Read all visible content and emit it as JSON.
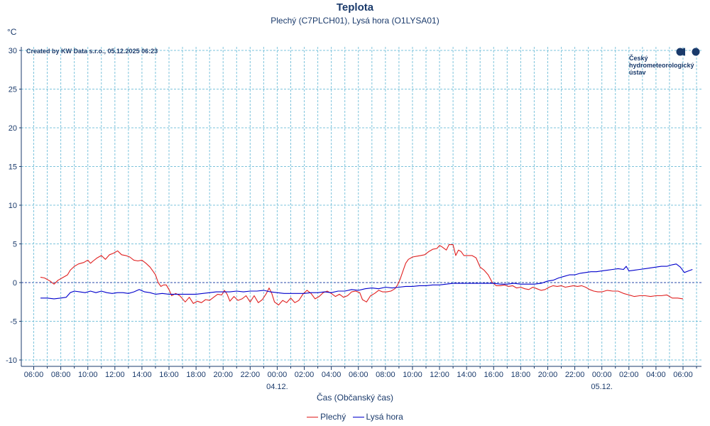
{
  "header": {
    "title": "Teplota",
    "subtitle": "Plechý (C7PLCH01), Lysá hora (O1LYSA01)",
    "unit": "°C",
    "credit": "Created by KW Data s.r.o., 05.12.2025 06:23"
  },
  "logo": {
    "text": "Český\nhydrometeorologický\nústav",
    "color": "#1a3a6b"
  },
  "legend": {
    "items": [
      {
        "label": "Plechý",
        "color": "#e02020"
      },
      {
        "label": "Lysá hora",
        "color": "#0000cc"
      }
    ]
  },
  "chart_data": {
    "type": "line",
    "title": "Teplota",
    "subtitle": "Plechý (C7PLCH01), Lysá hora (O1LYSA01)",
    "xlabel": "Čas (Občanský čas)",
    "ylabel": "°C",
    "ylim": [
      -10,
      30
    ],
    "yticks": [
      -10,
      -5,
      0,
      5,
      10,
      15,
      20,
      25,
      30
    ],
    "x_unit": "hours from 03.12. 06:00",
    "xlim": [
      -0.5,
      49.3
    ],
    "xticks": [
      {
        "x": 0,
        "label": "06:00"
      },
      {
        "x": 2,
        "label": "08:00"
      },
      {
        "x": 4,
        "label": "10:00"
      },
      {
        "x": 6,
        "label": "12:00"
      },
      {
        "x": 8,
        "label": "14:00"
      },
      {
        "x": 10,
        "label": "16:00"
      },
      {
        "x": 12,
        "label": "18:00"
      },
      {
        "x": 14,
        "label": "20:00"
      },
      {
        "x": 16,
        "label": "22:00"
      },
      {
        "x": 18,
        "label": "00:00"
      },
      {
        "x": 20,
        "label": "02:00"
      },
      {
        "x": 22,
        "label": "04:00"
      },
      {
        "x": 24,
        "label": "06:00"
      },
      {
        "x": 26,
        "label": "08:00"
      },
      {
        "x": 28,
        "label": "10:00"
      },
      {
        "x": 30,
        "label": "12:00"
      },
      {
        "x": 32,
        "label": "14:00"
      },
      {
        "x": 34,
        "label": "16:00"
      },
      {
        "x": 36,
        "label": "18:00"
      },
      {
        "x": 38,
        "label": "20:00"
      },
      {
        "x": 40,
        "label": "22:00"
      },
      {
        "x": 42,
        "label": "00:00"
      },
      {
        "x": 44,
        "label": "02:00"
      },
      {
        "x": 46,
        "label": "04:00"
      },
      {
        "x": 48,
        "label": "06:00"
      }
    ],
    "date_labels": [
      {
        "x": 18,
        "label": "04.12."
      },
      {
        "x": 42,
        "label": "05.12."
      }
    ],
    "grid": true,
    "legend_position": "bottom-center",
    "series": [
      {
        "name": "Plechý",
        "color": "#e02020",
        "points": [
          [
            0.5,
            0.7
          ],
          [
            0.8,
            0.6
          ],
          [
            1.2,
            0.2
          ],
          [
            1.5,
            -0.2
          ],
          [
            1.8,
            0.3
          ],
          [
            2.2,
            0.7
          ],
          [
            2.5,
            1.0
          ],
          [
            2.7,
            1.6
          ],
          [
            3.0,
            2.1
          ],
          [
            3.3,
            2.4
          ],
          [
            3.7,
            2.6
          ],
          [
            4.0,
            2.9
          ],
          [
            4.2,
            2.5
          ],
          [
            4.4,
            2.8
          ],
          [
            4.7,
            3.2
          ],
          [
            5.0,
            3.5
          ],
          [
            5.3,
            3.0
          ],
          [
            5.6,
            3.6
          ],
          [
            5.9,
            3.8
          ],
          [
            6.2,
            4.1
          ],
          [
            6.5,
            3.6
          ],
          [
            6.8,
            3.5
          ],
          [
            7.1,
            3.3
          ],
          [
            7.4,
            2.9
          ],
          [
            7.7,
            2.8
          ],
          [
            8.0,
            2.9
          ],
          [
            8.3,
            2.5
          ],
          [
            8.6,
            2.0
          ],
          [
            8.8,
            1.5
          ],
          [
            9.0,
            1.0
          ],
          [
            9.2,
            0.0
          ],
          [
            9.4,
            -0.5
          ],
          [
            9.6,
            -0.3
          ],
          [
            9.8,
            -0.3
          ],
          [
            10.0,
            -0.9
          ],
          [
            10.2,
            -1.7
          ],
          [
            10.5,
            -1.4
          ],
          [
            10.8,
            -1.7
          ],
          [
            11.2,
            -2.5
          ],
          [
            11.5,
            -1.9
          ],
          [
            11.8,
            -2.7
          ],
          [
            12.1,
            -2.4
          ],
          [
            12.4,
            -2.6
          ],
          [
            12.7,
            -2.2
          ],
          [
            13.0,
            -2.3
          ],
          [
            13.3,
            -1.9
          ],
          [
            13.6,
            -1.5
          ],
          [
            13.9,
            -1.6
          ],
          [
            14.1,
            -1.0
          ],
          [
            14.3,
            -1.5
          ],
          [
            14.5,
            -2.4
          ],
          [
            14.8,
            -1.8
          ],
          [
            15.1,
            -2.3
          ],
          [
            15.4,
            -2.1
          ],
          [
            15.7,
            -1.7
          ],
          [
            16.0,
            -2.5
          ],
          [
            16.3,
            -1.7
          ],
          [
            16.6,
            -2.6
          ],
          [
            16.9,
            -2.2
          ],
          [
            17.2,
            -1.4
          ],
          [
            17.4,
            -0.7
          ],
          [
            17.6,
            -1.4
          ],
          [
            17.8,
            -2.5
          ],
          [
            18.1,
            -2.9
          ],
          [
            18.4,
            -2.3
          ],
          [
            18.7,
            -2.6
          ],
          [
            19.0,
            -2.0
          ],
          [
            19.3,
            -2.6
          ],
          [
            19.6,
            -2.3
          ],
          [
            19.9,
            -1.5
          ],
          [
            20.2,
            -1.0
          ],
          [
            20.5,
            -1.4
          ],
          [
            20.8,
            -2.1
          ],
          [
            21.1,
            -1.8
          ],
          [
            21.4,
            -1.3
          ],
          [
            21.7,
            -1.1
          ],
          [
            22.0,
            -1.4
          ],
          [
            22.3,
            -1.8
          ],
          [
            22.6,
            -1.5
          ],
          [
            22.9,
            -1.9
          ],
          [
            23.2,
            -1.7
          ],
          [
            23.5,
            -1.2
          ],
          [
            23.8,
            -1.1
          ],
          [
            24.1,
            -1.3
          ],
          [
            24.3,
            -2.2
          ],
          [
            24.6,
            -2.5
          ],
          [
            24.9,
            -1.7
          ],
          [
            25.2,
            -1.4
          ],
          [
            25.5,
            -1.0
          ],
          [
            25.8,
            -1.2
          ],
          [
            26.1,
            -1.2
          ],
          [
            26.4,
            -1.1
          ],
          [
            26.7,
            -0.8
          ],
          [
            26.9,
            -0.3
          ],
          [
            27.1,
            0.5
          ],
          [
            27.3,
            1.5
          ],
          [
            27.5,
            2.5
          ],
          [
            27.7,
            3.0
          ],
          [
            28.0,
            3.3
          ],
          [
            28.3,
            3.4
          ],
          [
            28.6,
            3.5
          ],
          [
            28.9,
            3.6
          ],
          [
            29.2,
            4.0
          ],
          [
            29.5,
            4.3
          ],
          [
            29.8,
            4.4
          ],
          [
            30.0,
            4.8
          ],
          [
            30.2,
            4.6
          ],
          [
            30.5,
            4.2
          ],
          [
            30.7,
            4.9
          ],
          [
            31.0,
            4.9
          ],
          [
            31.2,
            3.5
          ],
          [
            31.4,
            4.2
          ],
          [
            31.6,
            4.0
          ],
          [
            31.8,
            3.5
          ],
          [
            32.1,
            3.5
          ],
          [
            32.4,
            3.5
          ],
          [
            32.7,
            3.2
          ],
          [
            33.0,
            2.0
          ],
          [
            33.3,
            1.6
          ],
          [
            33.6,
            1.0
          ],
          [
            33.9,
            0.0
          ],
          [
            34.2,
            -0.4
          ],
          [
            34.5,
            -0.4
          ],
          [
            34.8,
            -0.3
          ],
          [
            35.1,
            -0.5
          ],
          [
            35.4,
            -0.4
          ],
          [
            35.7,
            -0.7
          ],
          [
            36.0,
            -0.6
          ],
          [
            36.3,
            -0.8
          ],
          [
            36.6,
            -0.9
          ],
          [
            36.9,
            -0.6
          ],
          [
            37.2,
            -0.8
          ],
          [
            37.5,
            -1.0
          ],
          [
            37.8,
            -0.9
          ],
          [
            38.1,
            -0.6
          ],
          [
            38.4,
            -0.4
          ],
          [
            38.7,
            -0.5
          ],
          [
            39.0,
            -0.4
          ],
          [
            39.3,
            -0.6
          ],
          [
            39.6,
            -0.5
          ],
          [
            39.9,
            -0.4
          ],
          [
            40.2,
            -0.5
          ],
          [
            40.5,
            -0.4
          ],
          [
            40.8,
            -0.6
          ],
          [
            41.1,
            -0.9
          ],
          [
            41.4,
            -1.1
          ],
          [
            41.7,
            -1.2
          ],
          [
            42.0,
            -1.2
          ],
          [
            42.4,
            -1.0
          ],
          [
            42.8,
            -1.1
          ],
          [
            43.2,
            -1.1
          ],
          [
            43.6,
            -1.4
          ],
          [
            44.0,
            -1.6
          ],
          [
            44.4,
            -1.8
          ],
          [
            44.8,
            -1.7
          ],
          [
            45.2,
            -1.7
          ],
          [
            45.6,
            -1.8
          ],
          [
            46.0,
            -1.7
          ],
          [
            46.4,
            -1.7
          ],
          [
            46.8,
            -1.6
          ],
          [
            47.2,
            -2.0
          ],
          [
            47.6,
            -2.0
          ],
          [
            48.0,
            -2.1
          ]
        ]
      },
      {
        "name": "Lysá hora",
        "color": "#0000cc",
        "points": [
          [
            0.5,
            -2.0
          ],
          [
            1.0,
            -2.0
          ],
          [
            1.5,
            -2.1
          ],
          [
            2.0,
            -2.0
          ],
          [
            2.4,
            -1.9
          ],
          [
            2.7,
            -1.3
          ],
          [
            3.0,
            -1.1
          ],
          [
            3.4,
            -1.2
          ],
          [
            3.8,
            -1.3
          ],
          [
            4.2,
            -1.1
          ],
          [
            4.6,
            -1.3
          ],
          [
            5.0,
            -1.1
          ],
          [
            5.4,
            -1.3
          ],
          [
            5.8,
            -1.4
          ],
          [
            6.2,
            -1.3
          ],
          [
            6.6,
            -1.3
          ],
          [
            7.0,
            -1.4
          ],
          [
            7.4,
            -1.2
          ],
          [
            7.8,
            -0.9
          ],
          [
            8.2,
            -1.2
          ],
          [
            8.6,
            -1.3
          ],
          [
            9.0,
            -1.5
          ],
          [
            9.5,
            -1.4
          ],
          [
            10.0,
            -1.5
          ],
          [
            10.5,
            -1.5
          ],
          [
            11.0,
            -1.5
          ],
          [
            11.5,
            -1.5
          ],
          [
            12.0,
            -1.5
          ],
          [
            12.5,
            -1.4
          ],
          [
            13.0,
            -1.3
          ],
          [
            13.5,
            -1.2
          ],
          [
            14.0,
            -1.2
          ],
          [
            14.5,
            -1.2
          ],
          [
            15.0,
            -1.1
          ],
          [
            15.5,
            -1.2
          ],
          [
            16.0,
            -1.1
          ],
          [
            16.5,
            -1.1
          ],
          [
            17.0,
            -1.0
          ],
          [
            17.5,
            -1.2
          ],
          [
            18.0,
            -1.3
          ],
          [
            18.5,
            -1.4
          ],
          [
            19.0,
            -1.4
          ],
          [
            19.5,
            -1.4
          ],
          [
            20.0,
            -1.4
          ],
          [
            20.5,
            -1.3
          ],
          [
            21.0,
            -1.3
          ],
          [
            21.5,
            -1.2
          ],
          [
            22.0,
            -1.3
          ],
          [
            22.5,
            -1.1
          ],
          [
            23.0,
            -1.1
          ],
          [
            23.5,
            -0.9
          ],
          [
            24.0,
            -1.0
          ],
          [
            24.5,
            -0.8
          ],
          [
            25.0,
            -0.7
          ],
          [
            25.5,
            -0.8
          ],
          [
            26.0,
            -0.6
          ],
          [
            26.5,
            -0.7
          ],
          [
            27.0,
            -0.6
          ],
          [
            27.5,
            -0.5
          ],
          [
            28.0,
            -0.5
          ],
          [
            28.5,
            -0.4
          ],
          [
            29.0,
            -0.4
          ],
          [
            29.5,
            -0.3
          ],
          [
            30.0,
            -0.3
          ],
          [
            30.5,
            -0.2
          ],
          [
            31.0,
            -0.1
          ],
          [
            31.5,
            -0.1
          ],
          [
            32.0,
            -0.1
          ],
          [
            32.5,
            -0.1
          ],
          [
            33.0,
            -0.1
          ],
          [
            33.5,
            -0.1
          ],
          [
            34.0,
            -0.1
          ],
          [
            34.5,
            -0.2
          ],
          [
            35.0,
            -0.2
          ],
          [
            35.5,
            -0.1
          ],
          [
            36.0,
            -0.2
          ],
          [
            36.5,
            -0.2
          ],
          [
            37.0,
            -0.2
          ],
          [
            37.5,
            -0.1
          ],
          [
            38.0,
            0.2
          ],
          [
            38.4,
            0.3
          ],
          [
            38.8,
            0.6
          ],
          [
            39.2,
            0.8
          ],
          [
            39.6,
            1.0
          ],
          [
            40.0,
            1.0
          ],
          [
            40.4,
            1.2
          ],
          [
            40.8,
            1.3
          ],
          [
            41.2,
            1.4
          ],
          [
            41.6,
            1.4
          ],
          [
            42.0,
            1.5
          ],
          [
            42.4,
            1.6
          ],
          [
            42.8,
            1.7
          ],
          [
            43.2,
            1.8
          ],
          [
            43.6,
            1.7
          ],
          [
            43.8,
            2.1
          ],
          [
            44.0,
            1.5
          ],
          [
            44.4,
            1.6
          ],
          [
            44.8,
            1.7
          ],
          [
            45.2,
            1.8
          ],
          [
            45.6,
            1.9
          ],
          [
            46.0,
            2.0
          ],
          [
            46.4,
            2.1
          ],
          [
            46.8,
            2.1
          ],
          [
            47.2,
            2.3
          ],
          [
            47.5,
            2.4
          ],
          [
            47.8,
            2.0
          ],
          [
            48.1,
            1.3
          ],
          [
            48.4,
            1.5
          ],
          [
            48.7,
            1.7
          ]
        ]
      }
    ]
  }
}
